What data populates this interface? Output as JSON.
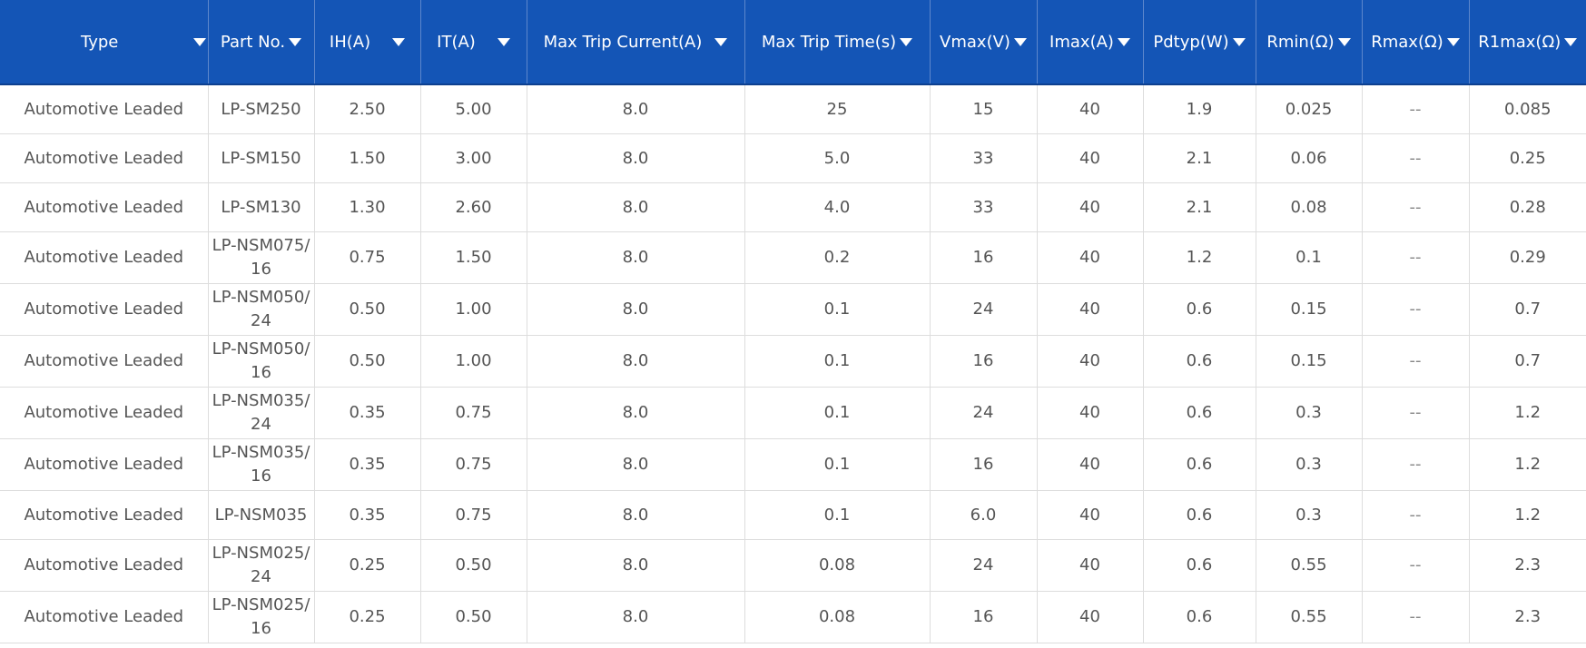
{
  "columns": [
    {
      "key": "type",
      "label": "Type"
    },
    {
      "key": "part_no",
      "label": "Part No."
    },
    {
      "key": "ih",
      "label": "IH(A)"
    },
    {
      "key": "it",
      "label": "IT(A)"
    },
    {
      "key": "max_trip_current",
      "label": "Max Trip Current(A)"
    },
    {
      "key": "max_trip_time",
      "label": "Max Trip Time(s)"
    },
    {
      "key": "vmax",
      "label": "Vmax(V)"
    },
    {
      "key": "imax",
      "label": "Imax(A)"
    },
    {
      "key": "pdtyp",
      "label": "Pdtyp(W)"
    },
    {
      "key": "rmin",
      "label": "Rmin(Ω)"
    },
    {
      "key": "rmax",
      "label": "Rmax(Ω)"
    },
    {
      "key": "r1max",
      "label": "R1max(Ω)"
    }
  ],
  "rows": [
    {
      "type": "Automotive Leaded",
      "part_no": "LP-SM250",
      "ih": "2.50",
      "it": "5.00",
      "max_trip_current": "8.0",
      "max_trip_time": "25",
      "vmax": "15",
      "imax": "40",
      "pdtyp": "1.9",
      "rmin": "0.025",
      "rmax": "--",
      "r1max": "0.085"
    },
    {
      "type": "Automotive Leaded",
      "part_no": "LP-SM150",
      "ih": "1.50",
      "it": "3.00",
      "max_trip_current": "8.0",
      "max_trip_time": "5.0",
      "vmax": "33",
      "imax": "40",
      "pdtyp": "2.1",
      "rmin": "0.06",
      "rmax": "--",
      "r1max": "0.25"
    },
    {
      "type": "Automotive Leaded",
      "part_no": "LP-SM130",
      "ih": "1.30",
      "it": "2.60",
      "max_trip_current": "8.0",
      "max_trip_time": "4.0",
      "vmax": "33",
      "imax": "40",
      "pdtyp": "2.1",
      "rmin": "0.08",
      "rmax": "--",
      "r1max": "0.28"
    },
    {
      "type": "Automotive Leaded",
      "part_no": "LP-NSM075/16",
      "ih": "0.75",
      "it": "1.50",
      "max_trip_current": "8.0",
      "max_trip_time": "0.2",
      "vmax": "16",
      "imax": "40",
      "pdtyp": "1.2",
      "rmin": "0.1",
      "rmax": "--",
      "r1max": "0.29"
    },
    {
      "type": "Automotive Leaded",
      "part_no": "LP-NSM050/24",
      "ih": "0.50",
      "it": "1.00",
      "max_trip_current": "8.0",
      "max_trip_time": "0.1",
      "vmax": "24",
      "imax": "40",
      "pdtyp": "0.6",
      "rmin": "0.15",
      "rmax": "--",
      "r1max": "0.7"
    },
    {
      "type": "Automotive Leaded",
      "part_no": "LP-NSM050/16",
      "ih": "0.50",
      "it": "1.00",
      "max_trip_current": "8.0",
      "max_trip_time": "0.1",
      "vmax": "16",
      "imax": "40",
      "pdtyp": "0.6",
      "rmin": "0.15",
      "rmax": "--",
      "r1max": "0.7"
    },
    {
      "type": "Automotive Leaded",
      "part_no": "LP-NSM035/24",
      "ih": "0.35",
      "it": "0.75",
      "max_trip_current": "8.0",
      "max_trip_time": "0.1",
      "vmax": "24",
      "imax": "40",
      "pdtyp": "0.6",
      "rmin": "0.3",
      "rmax": "--",
      "r1max": "1.2"
    },
    {
      "type": "Automotive Leaded",
      "part_no": "LP-NSM035/16",
      "ih": "0.35",
      "it": "0.75",
      "max_trip_current": "8.0",
      "max_trip_time": "0.1",
      "vmax": "16",
      "imax": "40",
      "pdtyp": "0.6",
      "rmin": "0.3",
      "rmax": "--",
      "r1max": "1.2"
    },
    {
      "type": "Automotive Leaded",
      "part_no": "LP-NSM035",
      "ih": "0.35",
      "it": "0.75",
      "max_trip_current": "8.0",
      "max_trip_time": "0.1",
      "vmax": "6.0",
      "imax": "40",
      "pdtyp": "0.6",
      "rmin": "0.3",
      "rmax": "--",
      "r1max": "1.2"
    },
    {
      "type": "Automotive Leaded",
      "part_no": "LP-NSM025/24",
      "ih": "0.25",
      "it": "0.50",
      "max_trip_current": "8.0",
      "max_trip_time": "0.08",
      "vmax": "24",
      "imax": "40",
      "pdtyp": "0.6",
      "rmin": "0.55",
      "rmax": "--",
      "r1max": "2.3"
    },
    {
      "type": "Automotive Leaded",
      "part_no": "LP-NSM025/16",
      "ih": "0.25",
      "it": "0.50",
      "max_trip_current": "8.0",
      "max_trip_time": "0.08",
      "vmax": "16",
      "imax": "40",
      "pdtyp": "0.6",
      "rmin": "0.55",
      "rmax": "--",
      "r1max": "2.3"
    }
  ],
  "icons": {
    "sort": "caret-down-icon"
  },
  "colors": {
    "header_bg": "#1455b6",
    "header_text": "#ffffff",
    "cell_text": "#555555",
    "grid": "#dddddd"
  }
}
